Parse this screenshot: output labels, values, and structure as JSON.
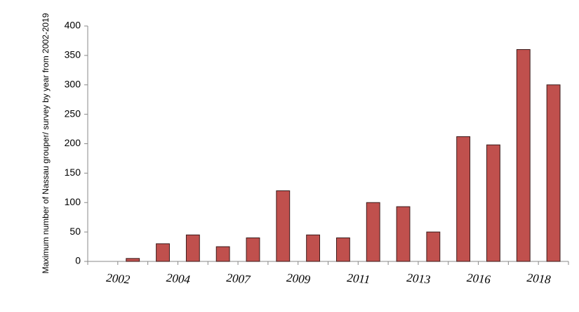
{
  "chart_data": {
    "type": "bar",
    "y_label": "Maximum number of Nassau grouper/ survey by year from 2002-2019",
    "categories": [
      "2002",
      null,
      "2004",
      null,
      "2007",
      null,
      "2009",
      null,
      "2011",
      null,
      "2013",
      null,
      "2016",
      null,
      "2018",
      null
    ],
    "values": [
      0,
      5,
      30,
      45,
      25,
      40,
      120,
      45,
      40,
      100,
      93,
      50,
      212,
      198,
      360,
      300
    ],
    "color": "#c0504d",
    "ylim": [
      0,
      400
    ],
    "yticks": [
      0,
      50,
      100,
      150,
      200,
      250,
      300,
      350,
      400
    ],
    "grid": false
  }
}
